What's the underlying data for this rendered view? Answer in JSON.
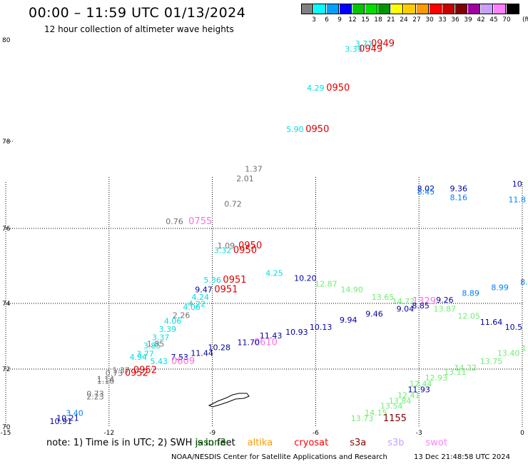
{
  "header": {
    "title": "00:00 – 11:59 UTC 01/13/2024",
    "subtitle": "12 hour collection of altimeter wave heights"
  },
  "legend": {
    "colors": [
      "#808080",
      "#00ffff",
      "#00a0ff",
      "#0000ff",
      "#00c800",
      "#00e000",
      "#009600",
      "#ffff00",
      "#ffcc00",
      "#ff9900",
      "#ff0000",
      "#c80000",
      "#800000",
      "#a000a0",
      "#c8a0ff",
      "#ff80ff",
      "#000000"
    ],
    "ticks": [
      "3",
      "6",
      "9",
      "12",
      "15",
      "18",
      "21",
      "24",
      "27",
      "30",
      "33",
      "36",
      "39",
      "42",
      "45",
      "70"
    ],
    "unit": "(ft)"
  },
  "axes": {
    "lat_labels": [
      "80",
      "78",
      "76",
      "74",
      "72",
      "70"
    ],
    "lon_labels": [
      "-15",
      "-12",
      "-9",
      "-6",
      "-3",
      "0"
    ],
    "grid": "dotted"
  },
  "map": {
    "labels": [
      {
        "t": "3.71",
        "c": "#00e0e0",
        "lon": -4.6,
        "lat": 79.87
      },
      {
        "t": "0949",
        "c": "#e00000",
        "lon": -4.05,
        "lat": 79.87,
        "k": "tm"
      },
      {
        "t": "3.39",
        "c": "#00e0e0",
        "lon": -4.9,
        "lat": 79.77
      },
      {
        "t": "0949",
        "c": "#e00000",
        "lon": -4.4,
        "lat": 79.77,
        "k": "tm"
      },
      {
        "t": "4.29",
        "c": "#00e0e0",
        "lon": -6.0,
        "lat": 79.0
      },
      {
        "t": "0950",
        "c": "#e00000",
        "lon": -5.35,
        "lat": 79.0,
        "k": "tm"
      },
      {
        "t": "5.90",
        "c": "#00e0e0",
        "lon": -6.6,
        "lat": 78.18
      },
      {
        "t": "0950",
        "c": "#e00000",
        "lon": -5.95,
        "lat": 78.18,
        "k": "tm"
      },
      {
        "t": "1.37",
        "c": "#707070",
        "lon": -7.8,
        "lat": 77.3
      },
      {
        "t": "2.01",
        "c": "#707070",
        "lon": -8.05,
        "lat": 77.08
      },
      {
        "t": "0.72",
        "c": "#707070",
        "lon": -8.4,
        "lat": 76.5
      },
      {
        "t": "0.76",
        "c": "#707070",
        "lon": -10.1,
        "lat": 76.1
      },
      {
        "t": "0755",
        "c": "#ff70e0",
        "lon": -9.35,
        "lat": 76.1,
        "k": "tm"
      },
      {
        "t": "8.02",
        "c": "#0000a0",
        "lon": -2.8,
        "lat": 76.85
      },
      {
        "t": "8.45",
        "c": "#0080ff",
        "lon": -2.8,
        "lat": 76.78
      },
      {
        "t": "9.36",
        "c": "#0000a0",
        "lon": -1.85,
        "lat": 76.85
      },
      {
        "t": "8.16",
        "c": "#0080ff",
        "lon": -1.85,
        "lat": 76.65
      },
      {
        "t": "10",
        "c": "#0000a0",
        "lon": -0.15,
        "lat": 76.96
      },
      {
        "t": "11.8",
        "c": "#0080ff",
        "lon": -0.15,
        "lat": 76.6
      },
      {
        "t": "1.09",
        "c": "#707070",
        "lon": -8.6,
        "lat": 75.47
      },
      {
        "t": "0950",
        "c": "#e00000",
        "lon": -7.9,
        "lat": 75.47,
        "k": "tm"
      },
      {
        "t": "3.32",
        "c": "#00e0e0",
        "lon": -8.7,
        "lat": 75.34
      },
      {
        "t": "0950",
        "c": "#e00000",
        "lon": -8.05,
        "lat": 75.34,
        "k": "tm"
      },
      {
        "t": "4.25",
        "c": "#00e0e0",
        "lon": -7.2,
        "lat": 74.73
      },
      {
        "t": "10.20",
        "c": "#0000a0",
        "lon": -6.3,
        "lat": 74.6
      },
      {
        "t": "5.36",
        "c": "#00e0e0",
        "lon": -9.0,
        "lat": 74.55
      },
      {
        "t": "0951",
        "c": "#e00000",
        "lon": -8.35,
        "lat": 74.55,
        "k": "tm"
      },
      {
        "t": "9.47",
        "c": "#0000a0",
        "lon": -9.25,
        "lat": 74.3
      },
      {
        "t": "0951",
        "c": "#e00000",
        "lon": -8.6,
        "lat": 74.3,
        "k": "tm"
      },
      {
        "t": "12.87",
        "c": "#70ee70",
        "lon": -5.7,
        "lat": 74.45
      },
      {
        "t": "14.90",
        "c": "#70ee70",
        "lon": -4.95,
        "lat": 74.3
      },
      {
        "t": "13.65",
        "c": "#70ee70",
        "lon": -4.05,
        "lat": 74.1
      },
      {
        "t": "14.72",
        "c": "#70ee70",
        "lon": -3.45,
        "lat": 73.98
      },
      {
        "t": "1329",
        "c": "#ff70e0",
        "lon": -2.85,
        "lat": 73.98,
        "k": "tm"
      },
      {
        "t": "9.26",
        "c": "#0000a0",
        "lon": -2.25,
        "lat": 74.02
      },
      {
        "t": "8.89",
        "c": "#0080ff",
        "lon": -1.5,
        "lat": 74.2
      },
      {
        "t": "8.99",
        "c": "#0080ff",
        "lon": -0.65,
        "lat": 74.35
      },
      {
        "t": "8.",
        "c": "#0080ff",
        "lon": 0.05,
        "lat": 74.5
      },
      {
        "t": "4.24",
        "c": "#00e0e0",
        "lon": -9.35,
        "lat": 74.1
      },
      {
        "t": "4.22",
        "c": "#00e0e0",
        "lon": -9.45,
        "lat": 73.9
      },
      {
        "t": "4.06",
        "c": "#00e0e0",
        "lon": -9.6,
        "lat": 73.8
      },
      {
        "t": "9.04",
        "c": "#0000a0",
        "lon": -3.4,
        "lat": 73.75
      },
      {
        "t": "8.85",
        "c": "#0000a0",
        "lon": -2.95,
        "lat": 73.85
      },
      {
        "t": "13.87",
        "c": "#70ee70",
        "lon": -2.25,
        "lat": 73.75
      },
      {
        "t": "9.46",
        "c": "#0000a0",
        "lon": -4.3,
        "lat": 73.6
      },
      {
        "t": "12.05",
        "c": "#70ee70",
        "lon": -1.55,
        "lat": 73.53
      },
      {
        "t": "2.26",
        "c": "#707070",
        "lon": -9.9,
        "lat": 73.55
      },
      {
        "t": "9.94",
        "c": "#0000a0",
        "lon": -5.05,
        "lat": 73.41
      },
      {
        "t": "11.64",
        "c": "#0000a0",
        "lon": -0.9,
        "lat": 73.35
      },
      {
        "t": "10.5",
        "c": "#0000a0",
        "lon": -0.25,
        "lat": 73.2
      },
      {
        "t": "4.06",
        "c": "#00e0e0",
        "lon": -10.15,
        "lat": 73.38
      },
      {
        "t": "10.13",
        "c": "#0000a0",
        "lon": -5.85,
        "lat": 73.2
      },
      {
        "t": "3.39",
        "c": "#00e0e0",
        "lon": -10.3,
        "lat": 73.13
      },
      {
        "t": "10.93",
        "c": "#0000a0",
        "lon": -6.55,
        "lat": 73.04
      },
      {
        "t": "3.37",
        "c": "#00e0e0",
        "lon": -10.5,
        "lat": 72.88
      },
      {
        "t": "11.43",
        "c": "#0000a0",
        "lon": -7.3,
        "lat": 72.93
      },
      {
        "t": "0610",
        "c": "#ff70e0",
        "lon": -7.45,
        "lat": 72.73,
        "k": "tm"
      },
      {
        "t": "11.70",
        "c": "#0000a0",
        "lon": -7.95,
        "lat": 72.73
      },
      {
        "t": "3.85",
        "c": "#00e0e0",
        "lon": -10.75,
        "lat": 72.63
      },
      {
        "t": "1.85",
        "c": "#707070",
        "lon": -10.65,
        "lat": 72.68
      },
      {
        "t": "10.28",
        "c": "#0000a0",
        "lon": -8.8,
        "lat": 72.58
      },
      {
        "t": "3.77",
        "c": "#00e0e0",
        "lon": -10.95,
        "lat": 72.38
      },
      {
        "t": "11.44",
        "c": "#0000a0",
        "lon": -9.3,
        "lat": 72.4
      },
      {
        "t": "4.94",
        "c": "#00e0e0",
        "lon": -11.15,
        "lat": 72.28
      },
      {
        "t": "7.53",
        "c": "#0000a0",
        "lon": -9.95,
        "lat": 72.28
      },
      {
        "t": "5.43",
        "c": "#00e0e0",
        "lon": -10.55,
        "lat": 72.15
      },
      {
        "t": "0609",
        "c": "#ff70e0",
        "lon": -9.85,
        "lat": 72.15,
        "k": "tm"
      },
      {
        "t": "1.37",
        "c": "#707070",
        "lon": -11.65,
        "lat": 71.87
      },
      {
        "t": "0952",
        "c": "#e00000",
        "lon": -10.95,
        "lat": 71.87,
        "k": "tm"
      },
      {
        "t": "0.73",
        "c": "#707070",
        "lon": -11.85,
        "lat": 71.77
      },
      {
        "t": "0952",
        "c": "#e00000",
        "lon": -11.2,
        "lat": 71.77,
        "k": "tm"
      },
      {
        "t": "1.14",
        "c": "#707070",
        "lon": -12.1,
        "lat": 71.55
      },
      {
        "t": "1.16",
        "c": "#707070",
        "lon": -12.1,
        "lat": 71.5
      },
      {
        "t": "0.73",
        "c": "#707070",
        "lon": -12.4,
        "lat": 71.05
      },
      {
        "t": "2.23",
        "c": "#707070",
        "lon": -12.4,
        "lat": 70.95
      },
      {
        "t": "3.40",
        "c": "#0080ff",
        "lon": -13.0,
        "lat": 70.38
      },
      {
        "t": "10.21",
        "c": "#0000a0",
        "lon": -13.2,
        "lat": 70.21
      },
      {
        "t": "10.91",
        "c": "#0000a0",
        "lon": -13.4,
        "lat": 70.1
      },
      {
        "t": "13.75",
        "c": "#70ee70",
        "lon": -0.9,
        "lat": 72.15
      },
      {
        "t": "14.22",
        "c": "#70ee70",
        "lon": -1.65,
        "lat": 71.95
      },
      {
        "t": "13.11",
        "c": "#70ee70",
        "lon": -1.95,
        "lat": 71.8
      },
      {
        "t": "13.40",
        "c": "#70ee70",
        "lon": -0.4,
        "lat": 72.4
      },
      {
        "t": "12.93",
        "c": "#70ee70",
        "lon": -2.5,
        "lat": 71.6
      },
      {
        "t": "12.44",
        "c": "#70ee70",
        "lon": -2.95,
        "lat": 71.4
      },
      {
        "t": "11.93",
        "c": "#0000a0",
        "lon": -3.0,
        "lat": 71.2
      },
      {
        "t": "12.41",
        "c": "#70ee70",
        "lon": -3.3,
        "lat": 71.0
      },
      {
        "t": "13.84",
        "c": "#70ee70",
        "lon": -3.55,
        "lat": 70.8
      },
      {
        "t": "13.54",
        "c": "#70ee70",
        "lon": -3.8,
        "lat": 70.63
      },
      {
        "t": "14.15",
        "c": "#70ee70",
        "lon": -4.25,
        "lat": 70.4
      },
      {
        "t": "13.73",
        "c": "#70ee70",
        "lon": -4.65,
        "lat": 70.2
      },
      {
        "t": "1155",
        "c": "#800000",
        "lon": -3.7,
        "lat": 70.2,
        "k": "tm"
      },
      {
        "t": "1",
        "c": "#70ee70",
        "lon": 0.05,
        "lat": 72.55
      }
    ]
  },
  "note": {
    "prefix": "note:  1) Time is in UTC; 2) SWH is in feet",
    "satellites": [
      {
        "name": "jason3",
        "color": "#006400"
      },
      {
        "name": "altika",
        "color": "#ff9900"
      },
      {
        "name": "cryosat",
        "color": "#ff0000"
      },
      {
        "name": "s3a",
        "color": "#800000"
      },
      {
        "name": "s3b",
        "color": "#c8a0ff"
      },
      {
        "name": "swot",
        "color": "#ff80ff"
      }
    ]
  },
  "footer": {
    "credit": "NOAA/NESDIS Center for Satellite Applications and Research",
    "stamp": "13 Dec 21:48:58 UTC 2024"
  }
}
